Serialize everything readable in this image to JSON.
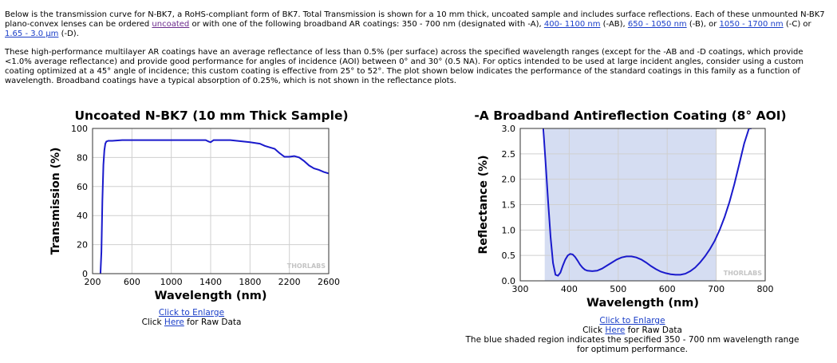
{
  "intro": {
    "p1_a": "Below is the transmission curve for N-BK7, a RoHS-compliant form of BK7. Total Transmission is shown for a 10 mm thick, uncoated sample and includes surface reflections. Each of these unmounted N-BK7 plano-convex lenses can be ordered ",
    "link_uncoated": "uncoated",
    "p1_b": " or with one of the following broadband AR coatings: 350 - 700 nm (designated with -A), ",
    "link_ab": "400- 1100 nm",
    "p1_c": " (-AB), ",
    "link_b": "650 - 1050 nm",
    "p1_d": " (-B), or ",
    "link_c": "1050 - 1700 nm",
    "p1_e": " (-C) or ",
    "link_d": "1.65 - 3.0 µm",
    "p1_f": " (-D).",
    "p2": "These high-performance multilayer AR coatings have an average reflectance of less than 0.5% (per surface) across the specified wavelength ranges (except for the -AB and -D coatings, which provide <1.0% average reflectance) and provide good performance for angles of incidence (AOI) between 0° and 30° (0.5 NA). For optics intended to be used at large incident angles, consider using a custom coating optimized at a 45° angle of incidence; this custom coating is effective from 25° to 52°. The plot shown below indicates the performance of the standard coatings in this family as a function of wavelength. Broadband coatings have a typical absorption of 0.25%, which is not shown in the reflectance plots."
  },
  "watermark": "THORLABS",
  "left_links": {
    "enlarge": "Click to Enlarge",
    "raw_prefix": "Click ",
    "raw_link": "Here",
    "raw_suffix": " for Raw Data"
  },
  "right_links": {
    "enlarge": "Click to Enlarge",
    "raw_prefix": "Click ",
    "raw_link": "Here",
    "raw_suffix": " for Raw Data",
    "note_line1": "The blue shaded region indicates the specified 350 - 700 nm wavelength range",
    "note_line2": "for optimum performance."
  },
  "colors": {
    "curve": "#1a1acc",
    "shade": "#d5ddf2",
    "grid": "#cfcfcf"
  },
  "chart_data": [
    {
      "type": "line",
      "title": "Uncoated N-BK7 (10 mm Thick Sample)",
      "xlabel": "Wavelength (nm)",
      "ylabel": "Transmission (%)",
      "xlim": [
        200,
        2600
      ],
      "ylim": [
        0,
        100
      ],
      "xticks": [
        "200",
        "600",
        "1000",
        "1400",
        "1800",
        "2200",
        "2600"
      ],
      "yticks": [
        "0",
        "20",
        "40",
        "60",
        "80",
        "100"
      ],
      "grid": true,
      "x": [
        280,
        290,
        300,
        310,
        320,
        330,
        340,
        360,
        380,
        400,
        500,
        600,
        800,
        1000,
        1200,
        1350,
        1380,
        1400,
        1430,
        1600,
        1800,
        1900,
        1950,
        2000,
        2050,
        2100,
        2150,
        2200,
        2250,
        2300,
        2350,
        2400,
        2450,
        2500,
        2550,
        2600
      ],
      "y": [
        0,
        15,
        50,
        75,
        85,
        89.5,
        91,
        91.5,
        91.5,
        91.5,
        92,
        92,
        92,
        92,
        92,
        92,
        91,
        90.5,
        92,
        92,
        90.5,
        89.5,
        88,
        87,
        86,
        83,
        80.5,
        80.5,
        81,
        80,
        77.5,
        74.5,
        72.5,
        71.5,
        70,
        69
      ]
    },
    {
      "type": "line",
      "title": "-A Broadband Antireflection Coating (8° AOI)",
      "xlabel": "Wavelength (nm)",
      "ylabel": "Reflectance (%)",
      "xlim": [
        300,
        800
      ],
      "ylim": [
        0,
        3.0
      ],
      "xticks": [
        "300",
        "400",
        "500",
        "600",
        "700",
        "800"
      ],
      "yticks": [
        "0.0",
        "0.5",
        "1.0",
        "1.5",
        "2.0",
        "2.5",
        "3.0"
      ],
      "grid": true,
      "shaded_range": [
        350,
        700
      ],
      "x": [
        347,
        352,
        357,
        362,
        367,
        372,
        377,
        382,
        387,
        392,
        397,
        402,
        407,
        412,
        417,
        422,
        427,
        432,
        437,
        447,
        457,
        467,
        477,
        487,
        497,
        507,
        517,
        527,
        537,
        547,
        557,
        567,
        577,
        587,
        597,
        607,
        617,
        627,
        637,
        647,
        657,
        667,
        677,
        687,
        697,
        707,
        717,
        727,
        737,
        747,
        757,
        767,
        772
      ],
      "y": [
        3.0,
        2.3,
        1.55,
        0.85,
        0.35,
        0.12,
        0.1,
        0.16,
        0.3,
        0.42,
        0.5,
        0.53,
        0.52,
        0.47,
        0.4,
        0.32,
        0.26,
        0.22,
        0.2,
        0.19,
        0.2,
        0.24,
        0.3,
        0.36,
        0.42,
        0.46,
        0.48,
        0.48,
        0.46,
        0.42,
        0.36,
        0.29,
        0.23,
        0.18,
        0.15,
        0.13,
        0.12,
        0.12,
        0.14,
        0.19,
        0.26,
        0.36,
        0.48,
        0.62,
        0.79,
        1.0,
        1.25,
        1.55,
        1.9,
        2.3,
        2.7,
        3.0,
        3.0
      ]
    }
  ]
}
